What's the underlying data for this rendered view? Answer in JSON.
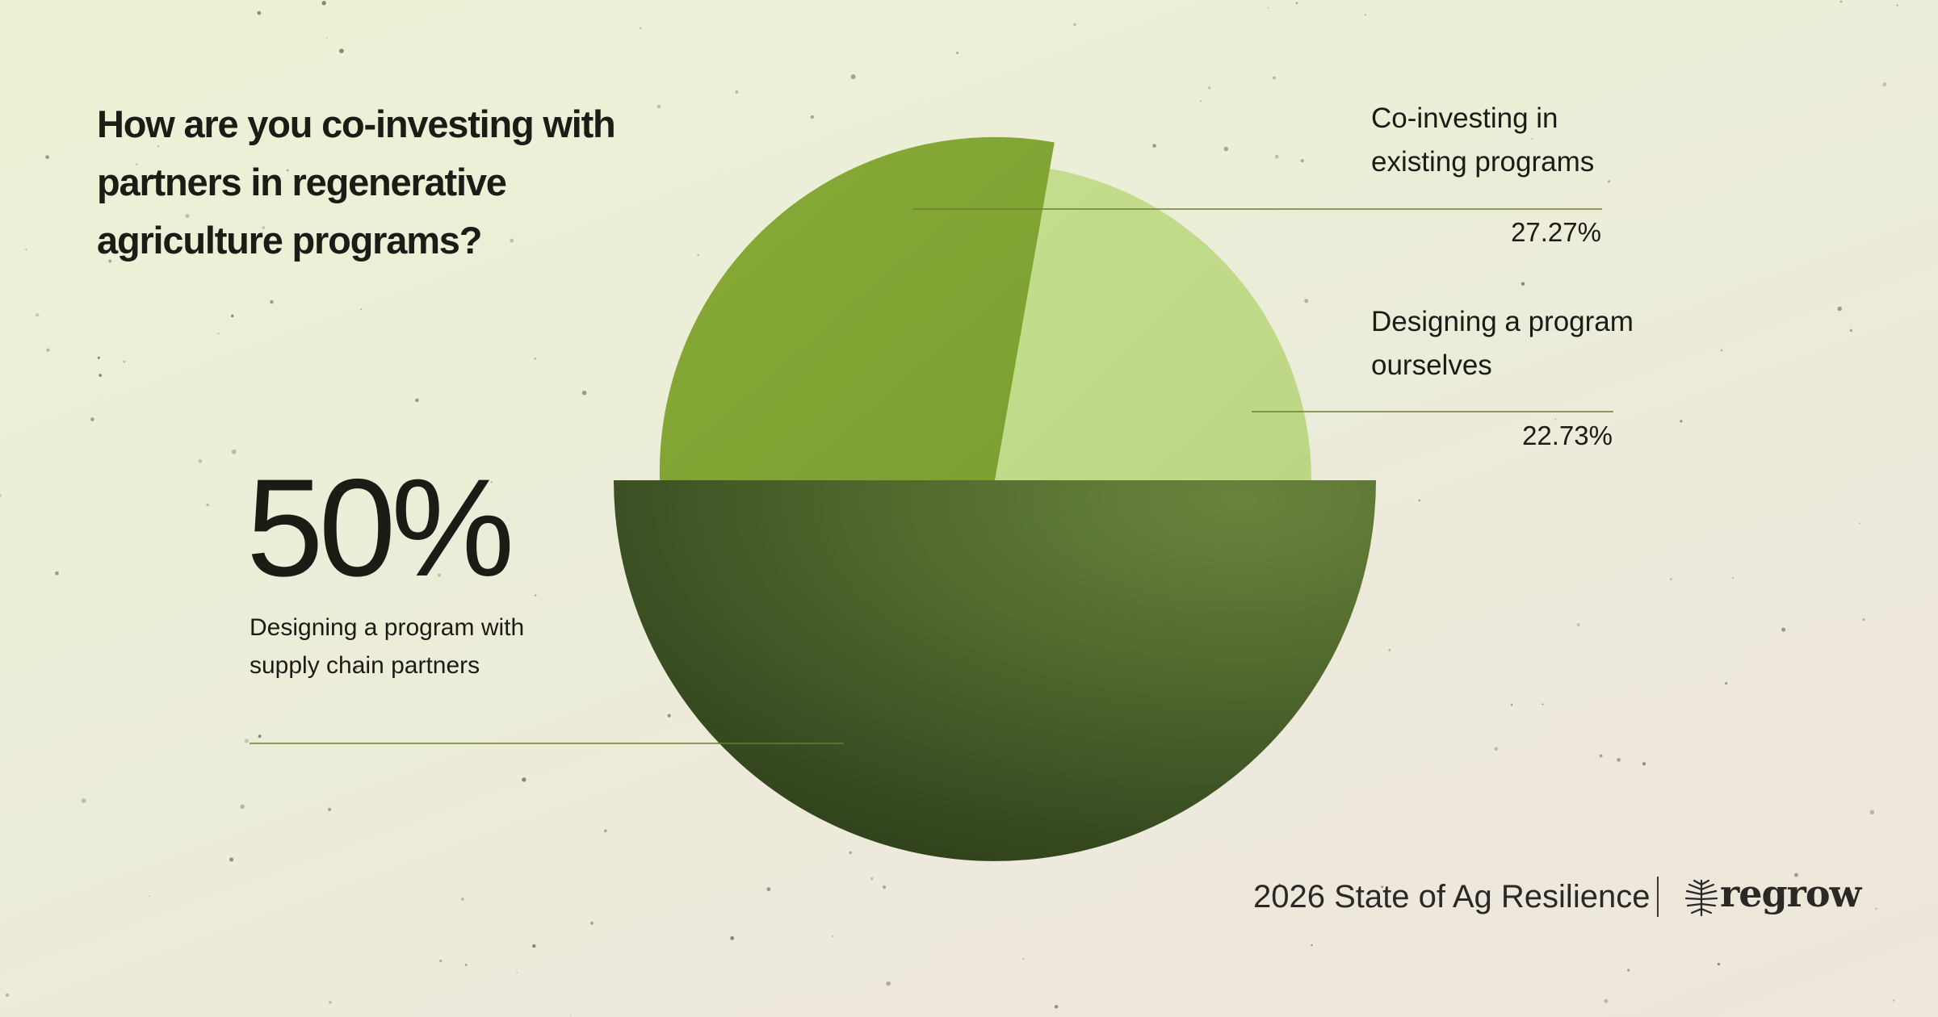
{
  "title": "How are you co-investing with partners in regenerative agriculture programs?",
  "highlight": {
    "value": "50%",
    "label": "Designing a program with supply chain partners"
  },
  "segments": [
    {
      "label": "Co-investing in existing programs",
      "value": "27.27%",
      "color": "#86a833"
    },
    {
      "label": "Designing a program ourselves",
      "value": "22.73%",
      "color": "#c2dc8c"
    },
    {
      "label": "Designing a program with supply chain partners",
      "value": "50%",
      "color": "#3c5122"
    }
  ],
  "footer": {
    "report": "2026 State of Ag Resilience",
    "brand": "regrow",
    "brand_icon": "wheat-icon"
  },
  "chart_data": {
    "type": "pie",
    "title": "How are you co-investing with partners in regenerative agriculture programs?",
    "labels": [
      "Co-investing in existing programs",
      "Designing a program ourselves",
      "Designing a program with supply chain partners"
    ],
    "values": [
      27.27,
      22.73,
      50
    ],
    "value_labels": [
      "27.27%",
      "22.73%",
      "50%"
    ],
    "colors": [
      "#86a833",
      "#c2dc8c",
      "#3c5122"
    ],
    "legend": "callouts"
  }
}
